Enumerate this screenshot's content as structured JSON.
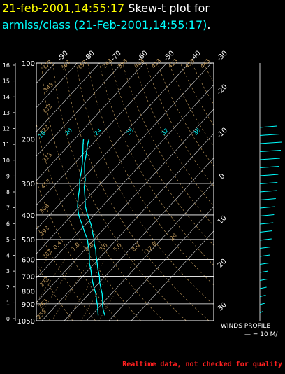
{
  "title": {
    "date_time": "21-feb-2001,14:55:17",
    "heading": "Skew-t plot for",
    "source": "armiss/class (21-Feb-2001,14:55:17)",
    "period": "."
  },
  "winds": {
    "label": "WINDS PROFILE",
    "scale": "— = 10 M/"
  },
  "footer": "Realtime data, not checked for quality",
  "colors": {
    "background": "#000000",
    "title_date": "#ffff00",
    "title_text": "#ffffff",
    "title_source": "#00ffff",
    "profile": "#00ffff",
    "grid": "#ffffff",
    "dry_adiabat": "#c8a060",
    "mixing_ratio": "#c8a060",
    "footer": "#ff2020"
  },
  "chart_data": {
    "type": "skew-t",
    "title": "Skew-t plot for armiss/class (21-Feb-2001,14:55:17)",
    "pressure_levels": [
      "100",
      "200",
      "300",
      "400",
      "500",
      "600",
      "700",
      "800",
      "900",
      "1050"
    ],
    "height_ticks": [
      "16",
      "15",
      "14",
      "13",
      "12",
      "11",
      "10",
      "9",
      "8",
      "7",
      "6",
      "5",
      "4",
      "3",
      "2",
      "1",
      "0"
    ],
    "isotherm_labels_top": [
      "-90",
      "-80",
      "-70",
      "-60",
      "-50",
      "-40",
      "-30"
    ],
    "isotherm_labels_right": [
      "-20",
      "-10",
      "0",
      "10",
      "20",
      "30"
    ],
    "theta_labels": [
      "373",
      "363",
      "353",
      "343",
      "333",
      "323",
      "313",
      "303",
      "293",
      "283",
      "273",
      "263",
      "253",
      "243",
      "393",
      "403",
      "413",
      "423",
      "433",
      "443",
      "453"
    ],
    "mixing_ratio_labels": [
      "16",
      "20",
      "24",
      "28",
      "32",
      "36",
      "0.4",
      "1.0",
      "2.0",
      "3.0",
      "5.0",
      "8.0",
      "12.0",
      "20"
    ],
    "temperature_profile": [
      {
        "p": 1000,
        "t": 26.0
      },
      {
        "p": 960,
        "t": 23.5
      },
      {
        "p": 920,
        "t": 21.2
      },
      {
        "p": 870,
        "t": 18.7
      },
      {
        "p": 820,
        "t": 15.8
      },
      {
        "p": 780,
        "t": 13.0
      },
      {
        "p": 740,
        "t": 10.1
      },
      {
        "p": 700,
        "t": 7.5
      },
      {
        "p": 660,
        "t": 4.2
      },
      {
        "p": 620,
        "t": 1.0
      },
      {
        "p": 580,
        "t": -2.5
      },
      {
        "p": 550,
        "t": -5.0
      },
      {
        "p": 520,
        "t": -8.2
      },
      {
        "p": 500,
        "t": -10.0
      },
      {
        "p": 470,
        "t": -13.5
      },
      {
        "p": 440,
        "t": -17.0
      },
      {
        "p": 400,
        "t": -23.0
      },
      {
        "p": 370,
        "t": -27.5
      },
      {
        "p": 340,
        "t": -31.5
      },
      {
        "p": 310,
        "t": -36.0
      },
      {
        "p": 290,
        "t": -38.5
      },
      {
        "p": 270,
        "t": -42.0
      },
      {
        "p": 250,
        "t": -45.5
      },
      {
        "p": 230,
        "t": -48.5
      },
      {
        "p": 210,
        "t": -52.0
      },
      {
        "p": 200,
        "t": -53.5
      }
    ],
    "dewpoint_profile": [
      {
        "p": 1000,
        "td": 23.0
      },
      {
        "p": 960,
        "td": 21.0
      },
      {
        "p": 920,
        "td": 19.0
      },
      {
        "p": 870,
        "td": 16.0
      },
      {
        "p": 820,
        "td": 13.0
      },
      {
        "p": 780,
        "td": 10.0
      },
      {
        "p": 740,
        "td": 7.0
      },
      {
        "p": 700,
        "td": 4.0
      },
      {
        "p": 660,
        "td": 1.0
      },
      {
        "p": 620,
        "td": -2.5
      },
      {
        "p": 580,
        "td": -5.5
      },
      {
        "p": 550,
        "td": -8.0
      },
      {
        "p": 520,
        "td": -11.0
      },
      {
        "p": 500,
        "td": -13.0
      },
      {
        "p": 470,
        "td": -17.0
      },
      {
        "p": 440,
        "td": -21.0
      },
      {
        "p": 400,
        "td": -27.0
      },
      {
        "p": 370,
        "td": -31.0
      },
      {
        "p": 340,
        "td": -34.5
      },
      {
        "p": 310,
        "td": -38.0
      },
      {
        "p": 290,
        "td": -41.0
      },
      {
        "p": 270,
        "td": -43.5
      },
      {
        "p": 250,
        "td": -46.5
      },
      {
        "p": 230,
        "td": -50.0
      },
      {
        "p": 210,
        "td": -54.0
      },
      {
        "p": 200,
        "td": -56.0
      }
    ],
    "wind_profile_kms": [
      {
        "z": 0.5,
        "spd": 4
      },
      {
        "z": 1.0,
        "spd": 6
      },
      {
        "z": 1.5,
        "spd": 7
      },
      {
        "z": 2.0,
        "spd": 8
      },
      {
        "z": 2.5,
        "spd": 9
      },
      {
        "z": 3.0,
        "spd": 10
      },
      {
        "z": 3.5,
        "spd": 11
      },
      {
        "z": 4.0,
        "spd": 12
      },
      {
        "z": 4.5,
        "spd": 13
      },
      {
        "z": 5.0,
        "spd": 14
      },
      {
        "z": 5.5,
        "spd": 15
      },
      {
        "z": 6.0,
        "spd": 16
      },
      {
        "z": 6.5,
        "spd": 17
      },
      {
        "z": 7.0,
        "spd": 18
      },
      {
        "z": 7.5,
        "spd": 19
      },
      {
        "z": 8.0,
        "spd": 20
      },
      {
        "z": 8.5,
        "spd": 21
      },
      {
        "z": 9.0,
        "spd": 22
      },
      {
        "z": 9.5,
        "spd": 23
      },
      {
        "z": 10.0,
        "spd": 24
      },
      {
        "z": 10.5,
        "spd": 25
      },
      {
        "z": 11.0,
        "spd": 26
      },
      {
        "z": 11.5,
        "spd": 24
      },
      {
        "z": 12.0,
        "spd": 20
      }
    ]
  }
}
